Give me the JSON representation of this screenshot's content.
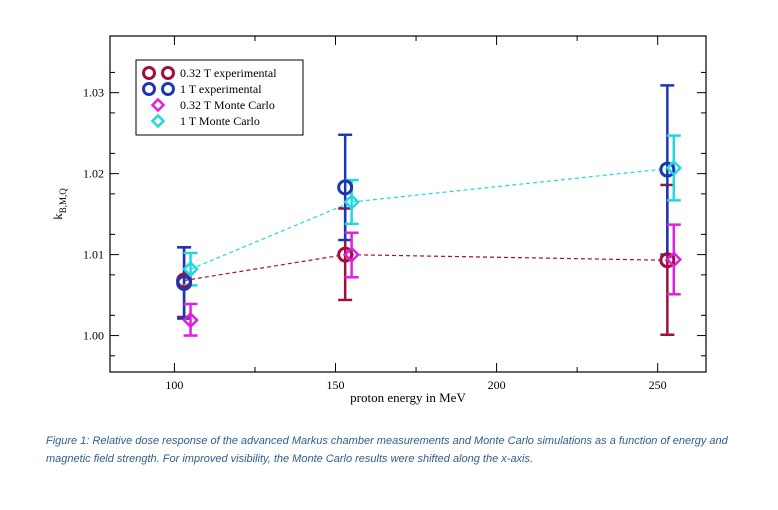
{
  "chart_data": {
    "type": "scatter",
    "xlabel": "proton energy in MeV",
    "ylabel": "k",
    "ylabel_sub": "B,M,Q",
    "xlim": [
      80,
      265
    ],
    "ylim": [
      0.9955,
      1.037
    ],
    "x_tick_values": [
      100,
      150,
      200,
      250
    ],
    "x_tick_labels": [
      "100",
      "150",
      "200",
      "250"
    ],
    "y_tick_values": [
      1.0,
      1.01,
      1.02,
      1.03
    ],
    "y_tick_labels": [
      "1.00",
      "1.01",
      "1.02",
      "1.03"
    ],
    "legend_position": "top-left",
    "grid": false,
    "series": [
      {
        "name": "0.32 T experimental",
        "marker": "circle",
        "color": "#a0103c",
        "connect": true,
        "points": [
          {
            "x": 103,
            "y": 1.0068,
            "err_low": 1.0023,
            "err_high": 1.0109
          },
          {
            "x": 153,
            "y": 1.01,
            "err_low": 1.0044,
            "err_high": 1.0157
          },
          {
            "x": 253,
            "y": 1.0093,
            "err_low": 1.0001,
            "err_high": 1.0186
          }
        ]
      },
      {
        "name": "1 T experimental",
        "marker": "circle",
        "color": "#1c38b0",
        "connect": false,
        "points": [
          {
            "x": 103,
            "y": 1.0065,
            "err_low": 1.0021,
            "err_high": 1.0109
          },
          {
            "x": 153,
            "y": 1.0183,
            "err_low": 1.0118,
            "err_high": 1.0248
          },
          {
            "x": 253,
            "y": 1.0205,
            "err_low": 1.01,
            "err_high": 1.0309
          }
        ]
      },
      {
        "name": "0.32 T Monte Carlo",
        "marker": "diamond",
        "color": "#e020e0",
        "connect": false,
        "points": [
          {
            "x": 105,
            "y": 1.0019,
            "err_low": 1.0,
            "err_high": 1.0039
          },
          {
            "x": 155,
            "y": 1.01,
            "err_low": 1.0072,
            "err_high": 1.0127
          },
          {
            "x": 255,
            "y": 1.0094,
            "err_low": 1.0051,
            "err_high": 1.0137
          }
        ]
      },
      {
        "name": "1 T Monte Carlo",
        "marker": "diamond",
        "color": "#22d8e0",
        "connect": true,
        "points": [
          {
            "x": 105,
            "y": 1.0082,
            "err_low": 1.0062,
            "err_high": 1.0102
          },
          {
            "x": 155,
            "y": 1.0165,
            "err_low": 1.0138,
            "err_high": 1.0192
          },
          {
            "x": 255,
            "y": 1.0207,
            "err_low": 1.0167,
            "err_high": 1.0247
          }
        ]
      }
    ]
  },
  "caption": "Figure 1: Relative dose response of the advanced Markus chamber measurements and Monte Carlo simulations as a function of energy and magnetic field strength. For improved visibility, the Monte Carlo results were shifted along the x-axis."
}
